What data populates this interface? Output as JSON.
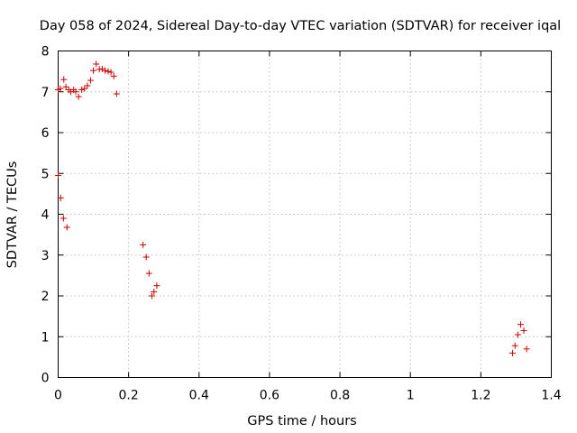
{
  "chart_data": {
    "type": "scatter",
    "title": "Day 058 of 2024, Sidereal Day-to-day VTEC variation (SDTVAR) for receiver iqal",
    "xlabel": "GPS time / hours",
    "ylabel": "SDTVAR / TECUs",
    "xlim": [
      0,
      1.4
    ],
    "ylim": [
      0,
      8
    ],
    "xticks": [
      0,
      0.2,
      0.4,
      0.6,
      0.8,
      1,
      1.2,
      1.4
    ],
    "xtick_labels": [
      "0",
      "0.2",
      "0.4",
      "0.6",
      "0.8",
      "1",
      "1.2",
      "1.4"
    ],
    "yticks": [
      0,
      1,
      2,
      3,
      4,
      5,
      6,
      7,
      8
    ],
    "ytick_labels": [
      "0",
      "1",
      "2",
      "3",
      "4",
      "5",
      "6",
      "7",
      "8"
    ],
    "grid": true,
    "marker": "+",
    "color": "#cc0000",
    "points": [
      [
        0.0,
        4.95
      ],
      [
        0.007,
        4.4
      ],
      [
        0.015,
        3.9
      ],
      [
        0.025,
        3.68
      ],
      [
        0.0,
        7.05
      ],
      [
        0.006,
        7.08
      ],
      [
        0.016,
        7.3
      ],
      [
        0.022,
        7.12
      ],
      [
        0.03,
        7.05
      ],
      [
        0.036,
        7.0
      ],
      [
        0.044,
        7.05
      ],
      [
        0.05,
        7.0
      ],
      [
        0.058,
        6.88
      ],
      [
        0.067,
        7.05
      ],
      [
        0.075,
        7.08
      ],
      [
        0.083,
        7.15
      ],
      [
        0.092,
        7.28
      ],
      [
        0.1,
        7.52
      ],
      [
        0.108,
        7.68
      ],
      [
        0.117,
        7.55
      ],
      [
        0.125,
        7.56
      ],
      [
        0.133,
        7.52
      ],
      [
        0.142,
        7.5
      ],
      [
        0.15,
        7.48
      ],
      [
        0.158,
        7.38
      ],
      [
        0.166,
        6.95
      ],
      [
        0.241,
        3.25
      ],
      [
        0.25,
        2.95
      ],
      [
        0.258,
        2.55
      ],
      [
        0.266,
        2.0
      ],
      [
        0.272,
        2.1
      ],
      [
        0.28,
        2.25
      ],
      [
        1.29,
        0.6
      ],
      [
        1.297,
        0.78
      ],
      [
        1.305,
        1.05
      ],
      [
        1.313,
        1.3
      ],
      [
        1.322,
        1.15
      ],
      [
        1.33,
        0.7
      ]
    ]
  }
}
